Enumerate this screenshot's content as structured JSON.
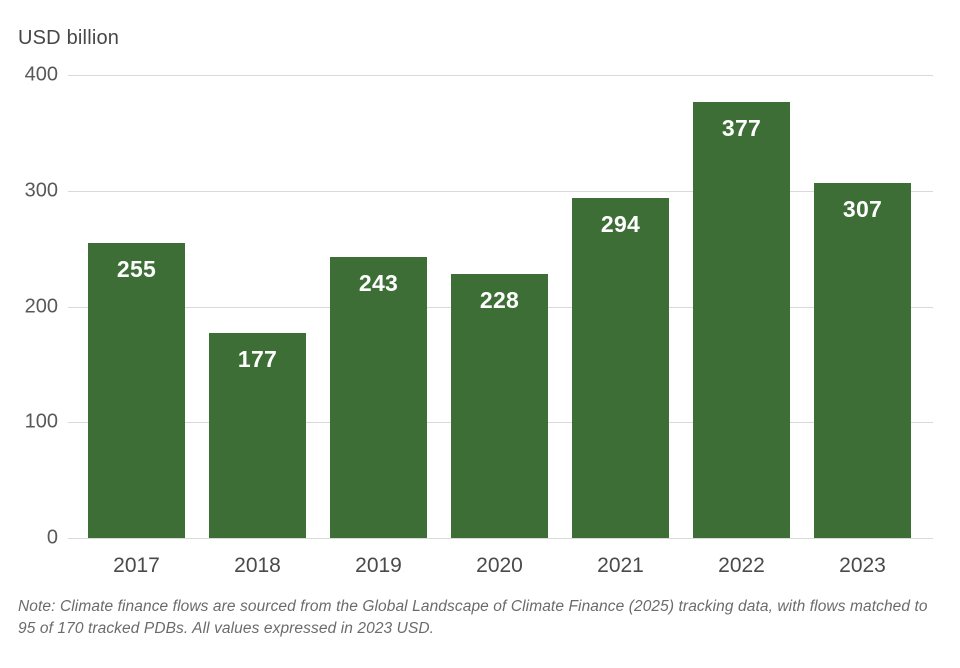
{
  "header": {
    "title": "USD billion"
  },
  "note": "Note: Climate finance flows are sourced from the Global Landscape of Climate Finance (2025) tracking data, with flows matched to 95 of 170 tracked PDBs. All values expressed in 2023 USD.",
  "colors": {
    "bar": "#3d6e36",
    "gridline": "#d9d9d9",
    "y_tick_text": "#595959",
    "x_tick_text": "#4a4a4a",
    "bar_label_text": "#ffffff",
    "title_text": "#474747",
    "note_text": "#6b6b6b",
    "background": "#ffffff"
  },
  "chart_data": {
    "type": "bar",
    "title": "USD billion",
    "categories": [
      "2017",
      "2018",
      "2019",
      "2020",
      "2021",
      "2022",
      "2023"
    ],
    "values": [
      255,
      177,
      243,
      228,
      294,
      377,
      307
    ],
    "xlabel": "",
    "ylabel": "USD billion",
    "ylim": [
      0,
      400
    ],
    "yticks": [
      0,
      100,
      200,
      300,
      400
    ],
    "grid": "horizontal",
    "legend": "none",
    "data_labels": "white, inside top of each bar",
    "bar_color": "#3d6e36"
  }
}
